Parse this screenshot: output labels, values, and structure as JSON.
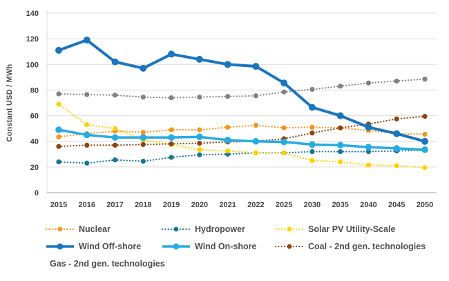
{
  "chart_data": {
    "type": "line",
    "title": "",
    "xlabel": "",
    "ylabel": "Constant USD / MWh",
    "ylim": [
      0,
      140
    ],
    "y_ticks": [
      0,
      20,
      40,
      60,
      80,
      100,
      120,
      140
    ],
    "grid": "horizontal",
    "legend_position": "bottom",
    "categories": [
      "2015",
      "2016",
      "2017",
      "2018",
      "2019",
      "2020",
      "2021",
      "2022",
      "2025",
      "2030",
      "2035",
      "2040",
      "2045",
      "2050"
    ],
    "series": [
      {
        "name": "Nuclear",
        "color": "#F7941E",
        "style": "dotted",
        "width": 2.2,
        "marker_r": 3.6,
        "values": [
          43.5,
          46,
          48,
          47,
          49,
          49,
          51,
          52.5,
          50.5,
          51,
          50.5,
          48.5,
          46,
          45.5
        ]
      },
      {
        "name": "Hydropower",
        "color": "#17768F",
        "style": "dotted",
        "width": 2.2,
        "marker_r": 3.6,
        "values": [
          24,
          23,
          25.5,
          24.5,
          27.5,
          29.5,
          30,
          31,
          31,
          32,
          32,
          32,
          32.5,
          33
        ]
      },
      {
        "name": "Solar PV Utility-Scale",
        "color": "#FFD200",
        "style": "dotted",
        "width": 2.2,
        "marker_r": 3.6,
        "values": [
          69,
          53,
          50,
          41,
          37.5,
          33.5,
          32.5,
          31,
          31,
          25,
          24,
          21.5,
          21,
          19.5
        ]
      },
      {
        "name": "Wind Off-shore",
        "color": "#1B75BC",
        "style": "solid",
        "width": 4,
        "marker_r": 5,
        "values": [
          111,
          119,
          102,
          97,
          108,
          104,
          100,
          98.5,
          85.5,
          66.5,
          60,
          51,
          46,
          40
        ]
      },
      {
        "name": "Wind On-shore",
        "color": "#29ABE2",
        "style": "solid",
        "width": 3.5,
        "marker_r": 4.8,
        "values": [
          49,
          45,
          43,
          43,
          43,
          43.5,
          41,
          40,
          39.5,
          37.5,
          37,
          35.5,
          34.5,
          33.5
        ]
      },
      {
        "name": "Coal - 2nd gen. technologies",
        "color": "#8B4513",
        "style": "dotted",
        "width": 2.2,
        "marker_r": 3.6,
        "values": [
          36,
          37,
          37,
          37.5,
          38,
          38.5,
          39.5,
          40,
          42,
          46.5,
          50.5,
          53.5,
          57.5,
          59.5
        ]
      },
      {
        "name": "Gas - 2nd gen. technologies",
        "color": "#808285",
        "style": "dotted",
        "width": 2.2,
        "marker_r": 3.6,
        "values": [
          77,
          76.5,
          76,
          74.5,
          74,
          74.5,
          75,
          75.5,
          78.5,
          80.5,
          83,
          85.5,
          87,
          88.5
        ]
      }
    ],
    "colors": {
      "grid": "#dcdcdc",
      "axis": "#b3b3b3",
      "tick_text": "#404040"
    }
  }
}
